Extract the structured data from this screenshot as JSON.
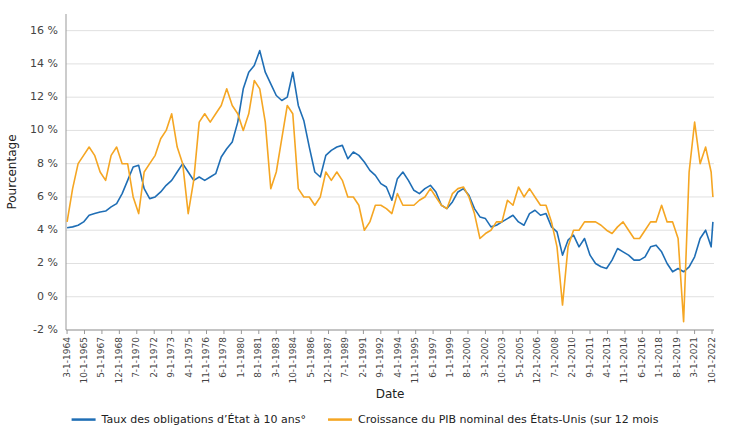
{
  "chart_data": {
    "type": "line",
    "xlabel": "Date",
    "ylabel": "Pourcentage",
    "x": [
      1964.17,
      1964.67,
      1965.17,
      1965.67,
      1966.17,
      1966.67,
      1967.17,
      1967.67,
      1968.17,
      1968.67,
      1969.17,
      1969.67,
      1970.17,
      1970.67,
      1971.17,
      1971.67,
      1972.17,
      1972.67,
      1973.17,
      1973.67,
      1974.17,
      1974.67,
      1975.17,
      1975.67,
      1976.17,
      1976.67,
      1977.17,
      1977.67,
      1978.17,
      1978.67,
      1979.17,
      1979.67,
      1980.17,
      1980.67,
      1981.17,
      1981.67,
      1982.17,
      1982.67,
      1983.17,
      1983.67,
      1984.17,
      1984.67,
      1985.17,
      1985.67,
      1986.17,
      1986.67,
      1987.17,
      1987.67,
      1988.17,
      1988.67,
      1989.17,
      1989.67,
      1990.17,
      1990.67,
      1991.17,
      1991.67,
      1992.17,
      1992.67,
      1993.17,
      1993.67,
      1994.17,
      1994.67,
      1995.17,
      1995.67,
      1996.17,
      1996.67,
      1997.17,
      1997.67,
      1998.17,
      1998.67,
      1999.17,
      1999.67,
      2000.17,
      2000.67,
      2001.17,
      2001.67,
      2002.17,
      2002.67,
      2003.17,
      2003.67,
      2004.17,
      2004.67,
      2005.17,
      2005.67,
      2006.17,
      2006.67,
      2007.17,
      2007.67,
      2008.17,
      2008.67,
      2009.17,
      2009.67,
      2010.17,
      2010.67,
      2011.17,
      2011.67,
      2012.17,
      2012.67,
      2013.17,
      2013.67,
      2014.17,
      2014.67,
      2015.17,
      2015.67,
      2016.17,
      2016.67,
      2017.17,
      2017.67,
      2018.17,
      2018.67,
      2019.17,
      2019.67,
      2020.17,
      2020.67,
      2021.17,
      2021.67,
      2022.17,
      2022.67,
      2022.83
    ],
    "series": [
      {
        "name": "Taux des obligations d’État à 10 ans°",
        "color": "#1f6eb5",
        "values": [
          4.15,
          4.2,
          4.3,
          4.5,
          4.9,
          5.0,
          5.1,
          5.15,
          5.4,
          5.6,
          6.2,
          7.0,
          7.8,
          7.9,
          6.5,
          5.9,
          6.0,
          6.3,
          6.7,
          7.0,
          7.5,
          8.0,
          7.5,
          7.0,
          7.2,
          7.0,
          7.2,
          7.4,
          8.4,
          8.9,
          9.3,
          10.5,
          12.5,
          13.5,
          13.9,
          14.8,
          13.5,
          12.8,
          12.1,
          11.8,
          12.0,
          13.5,
          11.5,
          10.6,
          9.0,
          7.5,
          7.2,
          8.5,
          8.8,
          9.0,
          9.1,
          8.3,
          8.7,
          8.5,
          8.1,
          7.6,
          7.3,
          6.8,
          6.6,
          5.8,
          7.1,
          7.5,
          7.0,
          6.4,
          6.2,
          6.5,
          6.7,
          6.3,
          5.5,
          5.3,
          5.7,
          6.3,
          6.5,
          6.1,
          5.3,
          4.8,
          4.7,
          4.2,
          4.3,
          4.5,
          4.7,
          4.9,
          4.5,
          4.3,
          5.0,
          5.2,
          4.9,
          5.0,
          4.2,
          3.9,
          2.5,
          3.4,
          3.7,
          3.0,
          3.5,
          2.5,
          2.0,
          1.8,
          1.7,
          2.2,
          2.9,
          2.7,
          2.5,
          2.2,
          2.2,
          2.4,
          3.0,
          3.1,
          2.7,
          2.0,
          1.5,
          1.7,
          1.5,
          1.8,
          2.4,
          3.5,
          4.0,
          3.0,
          4.5
        ]
      },
      {
        "name": "Croissance du PIB nominal des États-Unis (sur 12 mois",
        "color": "#f5a623",
        "values": [
          4.5,
          6.5,
          8.0,
          8.5,
          9.0,
          8.5,
          7.5,
          7.0,
          8.5,
          9.0,
          8.0,
          8.0,
          6.0,
          5.0,
          7.5,
          8.0,
          8.5,
          9.5,
          10.0,
          11.0,
          9.0,
          8.0,
          5.0,
          7.0,
          10.5,
          11.0,
          10.5,
          11.0,
          11.5,
          12.5,
          11.5,
          11.0,
          10.0,
          11.0,
          13.0,
          12.5,
          10.5,
          6.5,
          7.5,
          9.5,
          11.5,
          11.0,
          6.5,
          6.0,
          6.0,
          5.5,
          6.0,
          7.5,
          7.0,
          7.5,
          7.0,
          6.0,
          6.0,
          5.5,
          4.0,
          4.5,
          5.5,
          5.5,
          5.3,
          5.0,
          6.2,
          5.5,
          5.5,
          5.5,
          5.8,
          6.0,
          6.5,
          6.0,
          5.5,
          5.3,
          6.2,
          6.5,
          6.6,
          6.0,
          5.0,
          3.5,
          3.8,
          4.0,
          4.5,
          4.5,
          5.8,
          5.5,
          6.6,
          6.0,
          6.5,
          6.0,
          5.5,
          5.5,
          4.5,
          3.0,
          -0.5,
          3.0,
          4.0,
          4.0,
          4.5,
          4.5,
          4.5,
          4.3,
          4.0,
          3.8,
          4.2,
          4.5,
          4.0,
          3.5,
          3.5,
          4.0,
          4.5,
          4.5,
          5.5,
          4.5,
          4.5,
          3.5,
          -1.5,
          7.5,
          10.5,
          8.0,
          9.0,
          7.5,
          6.0
        ]
      }
    ],
    "xlim": [
      1964.07,
      2022.93
    ],
    "xticks": [
      {
        "value": 1964.1666666666667,
        "label": "3-1-1964"
      },
      {
        "value": 1965.75,
        "label": "10-1-1965"
      },
      {
        "value": 1967.3333333333333,
        "label": "5-1-1967"
      },
      {
        "value": 1968.9166666666667,
        "label": "12-1-1968"
      },
      {
        "value": 1970.5,
        "label": "7-1-1970"
      },
      {
        "value": 1972.0833333333333,
        "label": "2-1-1972"
      },
      {
        "value": 1973.6666666666667,
        "label": "9-1-1973"
      },
      {
        "value": 1975.25,
        "label": "4-1-1975"
      },
      {
        "value": 1976.8333333333333,
        "label": "11-1-1976"
      },
      {
        "value": 1978.4166666666667,
        "label": "6-1-1978"
      },
      {
        "value": 1980,
        "label": "1-1-1980"
      },
      {
        "value": 1981.5833333333333,
        "label": "8-1-1981"
      },
      {
        "value": 1983.1666666666667,
        "label": "3-1-1983"
      },
      {
        "value": 1984.75,
        "label": "10-1-1984"
      },
      {
        "value": 1986.3333333333333,
        "label": "5-1-1986"
      },
      {
        "value": 1987.9166666666667,
        "label": "12-1-1987"
      },
      {
        "value": 1989.5,
        "label": "7-1-1989"
      },
      {
        "value": 1991.0833333333333,
        "label": "2-1-1991"
      },
      {
        "value": 1992.6666666666667,
        "label": "9-1-1992"
      },
      {
        "value": 1994.25,
        "label": "4-1-1994"
      },
      {
        "value": 1995.8333333333333,
        "label": "11-1-1995"
      },
      {
        "value": 1997.4166666666667,
        "label": "6-1-1997"
      },
      {
        "value": 1999,
        "label": "1-1-1999"
      },
      {
        "value": 2000.5833333333333,
        "label": "8-1-2000"
      },
      {
        "value": 2002.1666666666667,
        "label": "3-1-2002"
      },
      {
        "value": 2003.75,
        "label": "10-1-2003"
      },
      {
        "value": 2005.3333333333333,
        "label": "5-1-2005"
      },
      {
        "value": 2006.9166666666667,
        "label": "12-1-2006"
      },
      {
        "value": 2008.5,
        "label": "7-1-2008"
      },
      {
        "value": 2010.0833333333333,
        "label": "2-1-2010"
      },
      {
        "value": 2011.6666666666667,
        "label": "9-1-2011"
      },
      {
        "value": 2013.25,
        "label": "4-1-2013"
      },
      {
        "value": 2014.8333333333333,
        "label": "11-1-2014"
      },
      {
        "value": 2016.4166666666667,
        "label": "6-1-2016"
      },
      {
        "value": 2018,
        "label": "1-1-2018"
      },
      {
        "value": 2019.5833333333333,
        "label": "8-1-2019"
      },
      {
        "value": 2021.1666666666667,
        "label": "3-1-2021"
      },
      {
        "value": 2022.75,
        "label": "10-1-2022"
      }
    ],
    "ylim": [
      -2,
      17
    ],
    "yticks": [
      {
        "value": -2,
        "label": "-2 %"
      },
      {
        "value": 0,
        "label": "0 %"
      },
      {
        "value": 2,
        "label": "2 %"
      },
      {
        "value": 4,
        "label": "4 %"
      },
      {
        "value": 6,
        "label": "6 %"
      },
      {
        "value": 8,
        "label": "8 %"
      },
      {
        "value": 10,
        "label": "10 %"
      },
      {
        "value": 12,
        "label": "12 %"
      },
      {
        "value": 14,
        "label": "14 %"
      },
      {
        "value": 16,
        "label": "16 %"
      }
    ],
    "grid": true,
    "legend": "bottom"
  }
}
